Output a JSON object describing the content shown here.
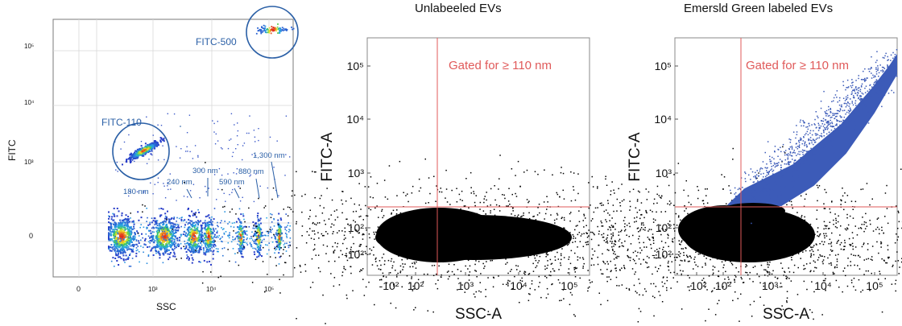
{
  "colors": {
    "annotation": "#2a5fa6",
    "gate": "#e05a5a",
    "positive_events": "#3c5bb8",
    "negative_events": "#000000",
    "grid": "#d0d0d0"
  },
  "chart_data": [
    {
      "type": "scatter",
      "subtype": "density-scatter",
      "title": "",
      "xlabel": "SSC",
      "ylabel": "FITC",
      "x_scale": "biexponential",
      "y_scale": "biexponential",
      "x_ticks": [
        "0",
        "10³",
        "10⁴",
        "10⁵"
      ],
      "y_ticks": [
        "0",
        "10³",
        "10⁴",
        "10⁵"
      ],
      "grid": true,
      "populations": [
        {
          "name": "180 nm",
          "ssc": 200,
          "fitc": 0
        },
        {
          "name": "240 nm",
          "ssc": 1000,
          "fitc": 0
        },
        {
          "name": "300 nm",
          "ssc": 3000,
          "fitc": 0
        },
        {
          "name": "590 nm",
          "ssc": 8000,
          "fitc": 0
        },
        {
          "name": "880 nm",
          "ssc": 30000,
          "fitc": 0
        },
        {
          "name": "1,300 nm",
          "ssc": 60000,
          "fitc": 0
        },
        {
          "name": "FITC-110",
          "ssc": 1000,
          "fitc": 2000
        },
        {
          "name": "FITC-500",
          "ssc": 150000,
          "fitc": 250000
        }
      ],
      "annotations": [
        "180 nm",
        "240 nm",
        "300 nm",
        "590 nm",
        "880 nm",
        "1,300 nm",
        "FITC-110",
        "FITC-500"
      ]
    },
    {
      "type": "scatter",
      "subtype": "density-scatter",
      "title": "Unlabeeled EVs",
      "xlabel": "SSC-A",
      "ylabel": "FITC-A",
      "x_scale": "biexponential",
      "y_scale": "biexponential",
      "x_ticks": [
        "-10²",
        "10²",
        "10³",
        "10⁴",
        "10⁵"
      ],
      "y_ticks": [
        "-10²",
        "10²",
        "10³",
        "10⁴",
        "10⁵"
      ],
      "gate": {
        "label": "Gated for ≥ 110 nm",
        "ssc_threshold": 250,
        "fitc_threshold": 200
      },
      "populations": [
        {
          "name": "unlabeled",
          "ssc_range": [
            -200,
            100000
          ],
          "fitc_range": [
            -200,
            200
          ]
        }
      ]
    },
    {
      "type": "scatter",
      "subtype": "density-scatter",
      "title": "Emersld Green labeled EVs",
      "xlabel": "SSC-A",
      "ylabel": "FITC-A",
      "x_scale": "biexponential",
      "y_scale": "biexponential",
      "x_ticks": [
        "-10²",
        "10²",
        "10³",
        "10⁴",
        "10⁵"
      ],
      "y_ticks": [
        "-10²",
        "10²",
        "10³",
        "10⁴",
        "10⁵"
      ],
      "gate": {
        "label": "Gated for ≥ 110 nm",
        "ssc_threshold": 250,
        "fitc_threshold": 200
      },
      "populations": [
        {
          "name": "unlabeled",
          "ssc_range": [
            -200,
            100000
          ],
          "fitc_range": [
            -200,
            200
          ]
        },
        {
          "name": "labeled",
          "ssc_range": [
            250,
            200000
          ],
          "fitc_range": [
            200,
            200000
          ]
        }
      ]
    }
  ]
}
